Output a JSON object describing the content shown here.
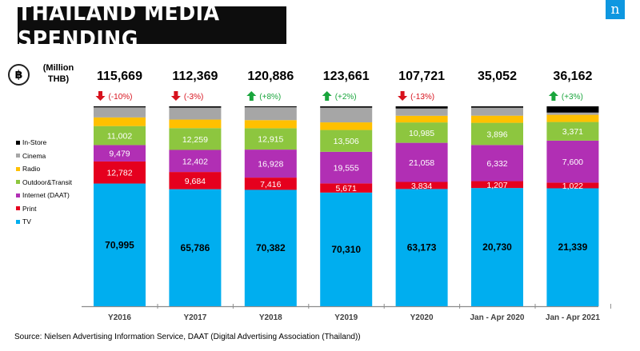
{
  "title": "THAILAND  MEDIA SPENDING",
  "brand": "n",
  "currency_symbol": "฿",
  "unit_label": "(Million THB)",
  "source": "Source: Nielsen Advertising Information Service, DAAT  (Digital Advertising Association (Thailand))",
  "legend": [
    {
      "name": "In-Store",
      "color": "#000000"
    },
    {
      "name": "Cinema",
      "color": "#a6a6a6"
    },
    {
      "name": "Radio",
      "color": "#ffc000"
    },
    {
      "name": "Outdoor&Transit",
      "color": "#8dc63f"
    },
    {
      "name": "Internet (DAAT)",
      "color": "#b12fb4"
    },
    {
      "name": "Print",
      "color": "#e5001e"
    },
    {
      "name": "TV",
      "color": "#00aeef"
    }
  ],
  "chart_data": {
    "type": "bar",
    "stacked": true,
    "categories": [
      "Y2016",
      "Y2017",
      "Y2018",
      "Y2019",
      "Y2020",
      "Jan - Apr 2020",
      "Jan - Apr 2021"
    ],
    "totals": [
      "115,669",
      "112,369",
      "120,886",
      "123,661",
      "107,721",
      "35,052",
      "36,162"
    ],
    "changes": [
      {
        "text": "(-10%)",
        "dir": "down"
      },
      {
        "text": "(-3%)",
        "dir": "down"
      },
      {
        "text": "(+8%)",
        "dir": "up"
      },
      {
        "text": "(+2%)",
        "dir": "up"
      },
      {
        "text": "(-13%)",
        "dir": "down"
      },
      null,
      {
        "text": "(+3%)",
        "dir": "up"
      }
    ],
    "series": [
      {
        "name": "TV",
        "color": "#00aeef",
        "values": [
          70995,
          65786,
          70382,
          70310,
          63173,
          20730,
          21339
        ]
      },
      {
        "name": "Print",
        "color": "#e5001e",
        "values": [
          12782,
          9684,
          7416,
          5671,
          3834,
          1207,
          1022
        ]
      },
      {
        "name": "Internet (DAAT)",
        "color": "#b12fb4",
        "values": [
          9479,
          12402,
          16928,
          19555,
          21058,
          6332,
          7600
        ]
      },
      {
        "name": "Outdoor&Transit",
        "color": "#8dc63f",
        "values": [
          11002,
          12259,
          12915,
          13506,
          10985,
          3896,
          3371
        ]
      },
      {
        "name": "Radio",
        "color": "#ffc000",
        "values": [
          5000,
          4800,
          4900,
          4700,
          3600,
          1250,
          1300
        ]
      },
      {
        "name": "Cinema",
        "color": "#a6a6a6",
        "values": [
          5800,
          6700,
          7800,
          9100,
          3900,
          1400,
          400
        ]
      },
      {
        "name": "In-Store",
        "color": "#000000",
        "values": [
          611,
          738,
          545,
          819,
          1171,
          237,
          1130
        ]
      }
    ],
    "labeled_series": [
      "TV",
      "Print",
      "Internet (DAAT)",
      "Outdoor&Transit"
    ],
    "display": "percent-of-total"
  }
}
